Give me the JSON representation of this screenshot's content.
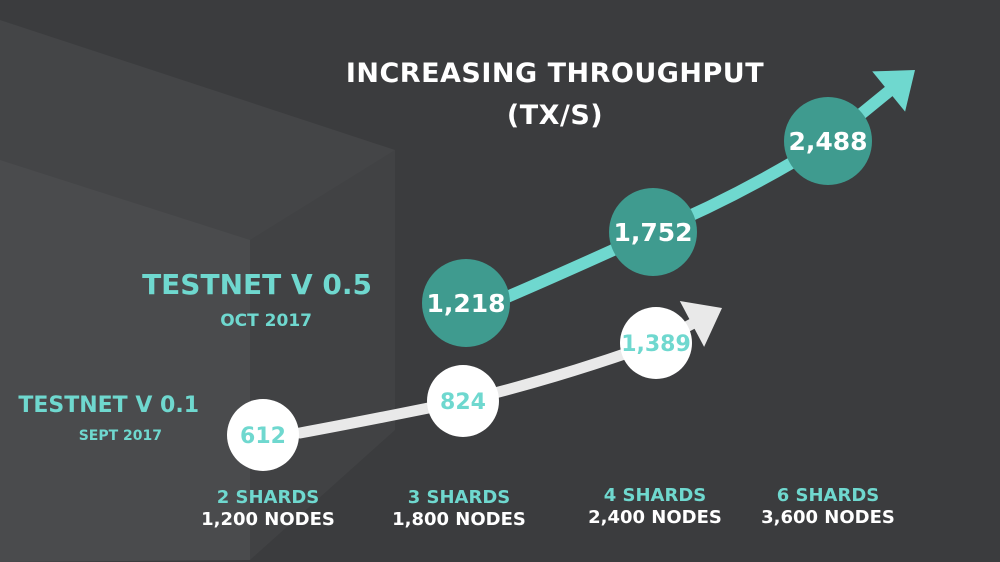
{
  "title": "INCREASING THROUGHPUT",
  "subtitle": "(TX/S)",
  "colors": {
    "background": "#3b3c3e",
    "accent": "#6fd8cf",
    "accent_dark": "#3f9b8f",
    "white": "#ffffff",
    "light_gray": "#e9e9e9"
  },
  "series_labels": {
    "v05": {
      "name": "TESTNET V 0.5",
      "date": "OCT 2017"
    },
    "v01": {
      "name": "TESTNET V 0.1",
      "date": "SEPT 2017"
    }
  },
  "categories": [
    {
      "shards": "2 SHARDS",
      "nodes": "1,200 NODES"
    },
    {
      "shards": "3 SHARDS",
      "nodes": "1,800 NODES"
    },
    {
      "shards": "4 SHARDS",
      "nodes": "2,400 NODES"
    },
    {
      "shards": "6 SHARDS",
      "nodes": "3,600 NODES"
    }
  ],
  "chart_data": {
    "type": "line",
    "title": "INCREASING THROUGHPUT",
    "subtitle": "(TX/S)",
    "categories": [
      "2 SHARDS",
      "3 SHARDS",
      "4 SHARDS",
      "6 SHARDS"
    ],
    "category_sublabels": [
      "1,200 NODES",
      "1,800 NODES",
      "2,400 NODES",
      "3,600 NODES"
    ],
    "series": [
      {
        "name": "TESTNET V 0.1",
        "date": "SEPT 2017",
        "values": [
          612,
          824,
          1389,
          null
        ],
        "labels": [
          "612",
          "824",
          "1,389",
          ""
        ]
      },
      {
        "name": "TESTNET V 0.5",
        "date": "OCT 2017",
        "values": [
          null,
          1218,
          1752,
          2488
        ],
        "labels": [
          "",
          "1,218",
          "1,752",
          "2,488"
        ]
      }
    ],
    "ylabel": "",
    "xlabel": "",
    "grid": false,
    "legend": "left"
  }
}
